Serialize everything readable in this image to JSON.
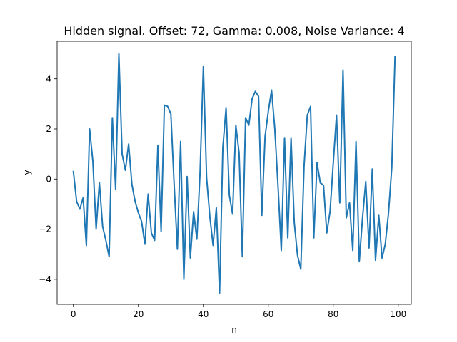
{
  "chart_data": {
    "type": "line",
    "title": "Hidden signal. Offset: 72, Gamma: 0.008, Noise Variance: 4",
    "xlabel": "n",
    "ylabel": "y",
    "xlim": [
      -5,
      104
    ],
    "ylim": [
      -5,
      5.5
    ],
    "xticks": [
      0,
      20,
      40,
      60,
      80,
      100
    ],
    "yticks": [
      -4,
      -2,
      0,
      2,
      4
    ],
    "ytick_labels": [
      "−4",
      "−2",
      "0",
      "2",
      "4"
    ],
    "grid": false,
    "series": [
      {
        "color": "#1f77b4",
        "x": [
          0,
          1,
          2,
          3,
          4,
          5,
          6,
          7,
          8,
          9,
          10,
          11,
          12,
          13,
          14,
          15,
          16,
          17,
          18,
          19,
          20,
          21,
          22,
          23,
          24,
          25,
          26,
          27,
          28,
          29,
          30,
          31,
          32,
          33,
          34,
          35,
          36,
          37,
          38,
          39,
          40,
          41,
          42,
          43,
          44,
          45,
          46,
          47,
          48,
          49,
          50,
          51,
          52,
          53,
          54,
          55,
          56,
          57,
          58,
          59,
          60,
          61,
          62,
          63,
          64,
          65,
          66,
          67,
          68,
          69,
          70,
          71,
          72,
          73,
          74,
          75,
          76,
          77,
          78,
          79,
          80,
          81,
          82,
          83,
          84,
          85,
          86,
          87,
          88,
          89,
          90,
          91,
          92,
          93,
          94,
          95,
          96,
          97,
          98,
          99
        ],
        "y": [
          0.3,
          -0.9,
          -1.2,
          -0.75,
          -2.65,
          2.0,
          0.7,
          -2.0,
          -0.15,
          -1.9,
          -2.45,
          -3.1,
          2.45,
          -0.4,
          5.0,
          1.0,
          0.35,
          1.4,
          -0.2,
          -0.9,
          -1.35,
          -1.7,
          -2.6,
          -0.6,
          -2.15,
          -2.45,
          1.35,
          -2.1,
          2.95,
          2.9,
          2.6,
          -0.2,
          -2.8,
          1.5,
          -4.0,
          0.1,
          -3.15,
          -1.3,
          -2.4,
          0.3,
          4.5,
          0.05,
          -1.5,
          -2.65,
          -1.15,
          -4.55,
          1.25,
          2.85,
          -0.65,
          -1.4,
          2.15,
          1.05,
          -3.1,
          2.45,
          2.15,
          3.2,
          3.5,
          3.3,
          -1.45,
          1.7,
          2.7,
          3.55,
          2.0,
          -0.3,
          -2.85,
          1.65,
          -2.35,
          1.65,
          -1.75,
          -3.05,
          -3.6,
          0.5,
          2.55,
          2.9,
          -2.35,
          0.65,
          -0.15,
          -0.25,
          -2.15,
          -1.3,
          0.65,
          2.55,
          -0.95,
          4.35,
          -1.55,
          -0.95,
          -2.85,
          1.5,
          -3.3,
          -1.55,
          -0.1,
          -2.75,
          0.4,
          -3.25,
          -1.45,
          -3.15,
          -2.6,
          -1.35,
          0.45,
          4.9
        ]
      }
    ]
  }
}
